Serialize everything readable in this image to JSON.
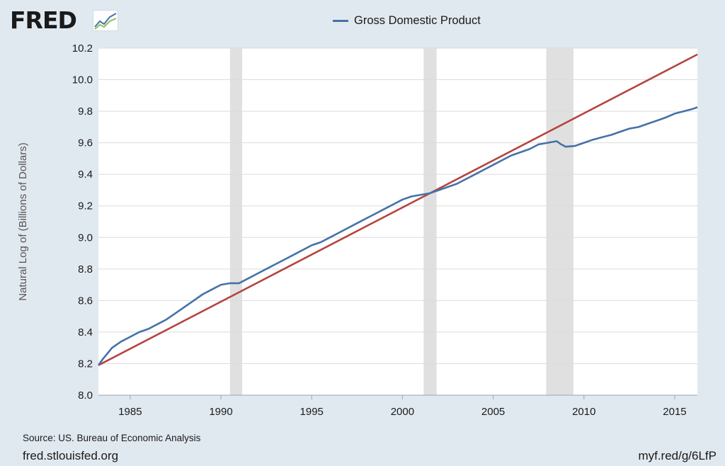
{
  "header": {
    "logo_text": "FRED",
    "logo_icon": "trend-chart-icon"
  },
  "footer": {
    "source": "Source: US. Bureau of Economic Analysis",
    "site": "fred.stlouisfed.org",
    "shortlink": "myf.red/g/6LfP"
  },
  "colors": {
    "background": "#e1e9f0",
    "plot_background": "#ffffff",
    "gdp_line": "#4572a7",
    "trend_line": "#b5433f",
    "recession": "#e0e0e0",
    "grid": "#dcdcdc"
  },
  "chart_data": {
    "type": "line",
    "title": "",
    "xlabel": "",
    "ylabel": "Natural Log of (Billions of Dollars)",
    "xlim": [
      1983.25,
      2016.25
    ],
    "ylim": [
      8.0,
      10.2
    ],
    "x_ticks": [
      1985,
      1990,
      1995,
      2000,
      2005,
      2010,
      2015
    ],
    "y_ticks": [
      "8.0",
      "8.2",
      "8.4",
      "8.6",
      "8.8",
      "9.0",
      "9.2",
      "9.4",
      "9.6",
      "9.8",
      "10.0",
      "10.2"
    ],
    "grid": true,
    "legend_position": "top-center",
    "recessions": [
      [
        1990.5,
        1991.17
      ],
      [
        2001.17,
        2001.88
      ],
      [
        2007.92,
        2009.42
      ]
    ],
    "series": [
      {
        "name": "Gross Domestic Product",
        "color": "#4572a7",
        "x": [
          1983.25,
          1983.5,
          1984.0,
          1984.5,
          1985.0,
          1985.5,
          1986.0,
          1986.5,
          1987.0,
          1987.5,
          1988.0,
          1988.5,
          1989.0,
          1989.5,
          1990.0,
          1990.5,
          1991.0,
          1991.5,
          1992.0,
          1992.5,
          1993.0,
          1993.5,
          1994.0,
          1994.5,
          1995.0,
          1995.5,
          1996.0,
          1996.5,
          1997.0,
          1997.5,
          1998.0,
          1998.5,
          1999.0,
          1999.5,
          2000.0,
          2000.5,
          2001.0,
          2001.5,
          2002.0,
          2002.5,
          2003.0,
          2003.5,
          2004.0,
          2004.5,
          2005.0,
          2005.5,
          2006.0,
          2006.5,
          2007.0,
          2007.5,
          2008.0,
          2008.5,
          2008.75,
          2009.0,
          2009.5,
          2010.0,
          2010.5,
          2011.0,
          2011.5,
          2012.0,
          2012.5,
          2013.0,
          2013.5,
          2014.0,
          2014.5,
          2015.0,
          2015.5,
          2016.0,
          2016.25
        ],
        "values": [
          8.19,
          8.23,
          8.3,
          8.34,
          8.37,
          8.4,
          8.42,
          8.45,
          8.48,
          8.52,
          8.56,
          8.6,
          8.64,
          8.67,
          8.7,
          8.71,
          8.71,
          8.74,
          8.77,
          8.8,
          8.83,
          8.86,
          8.89,
          8.92,
          8.95,
          8.97,
          9.0,
          9.03,
          9.06,
          9.09,
          9.12,
          9.15,
          9.18,
          9.21,
          9.24,
          9.26,
          9.27,
          9.28,
          9.3,
          9.32,
          9.34,
          9.37,
          9.4,
          9.43,
          9.46,
          9.49,
          9.52,
          9.54,
          9.56,
          9.59,
          9.6,
          9.61,
          9.59,
          9.575,
          9.58,
          9.6,
          9.62,
          9.635,
          9.65,
          9.67,
          9.69,
          9.7,
          9.72,
          9.74,
          9.76,
          9.785,
          9.8,
          9.815,
          9.825
        ]
      },
      {
        "name": "",
        "color": "#b5433f",
        "x": [
          1983.25,
          2016.25
        ],
        "values": [
          8.19,
          10.16
        ]
      }
    ]
  }
}
